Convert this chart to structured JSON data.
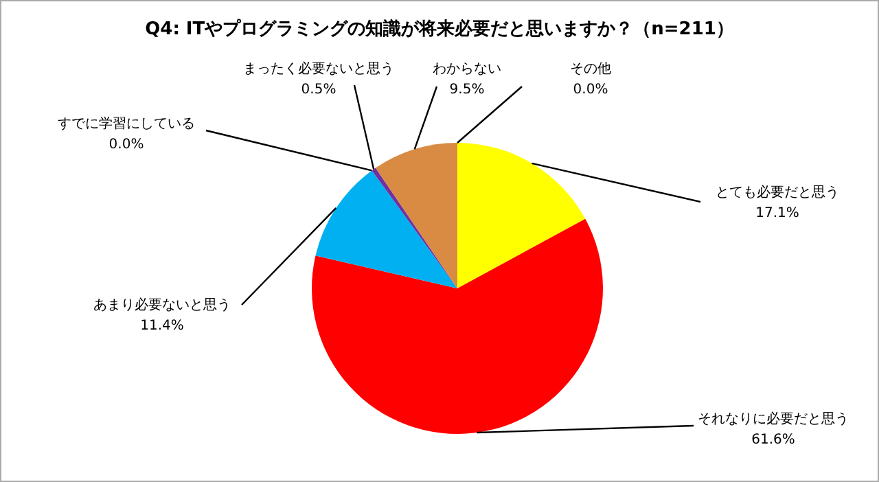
{
  "chart_data": {
    "type": "pie",
    "title": "Q4: ITやプログラミングの知識が将来必要だと思いますか？（n=211）",
    "categories": [
      "とても必要だと思う",
      "それなりに必要だと思う",
      "あまり必要ないと思う",
      "すでに学習にしている",
      "まったく必要ないと思う",
      "わからない",
      "その他"
    ],
    "values": [
      17.1,
      61.6,
      11.4,
      0.0,
      0.5,
      9.5,
      0.0
    ],
    "value_labels": [
      "17.1%",
      "61.6%",
      "11.4%",
      "0.0%",
      "0.5%",
      "9.5%",
      "0.0%"
    ],
    "colors": [
      "#ffff00",
      "#ff0000",
      "#00b0f0",
      "#92d050",
      "#7030a0",
      "#d98b43",
      "#808080"
    ]
  }
}
